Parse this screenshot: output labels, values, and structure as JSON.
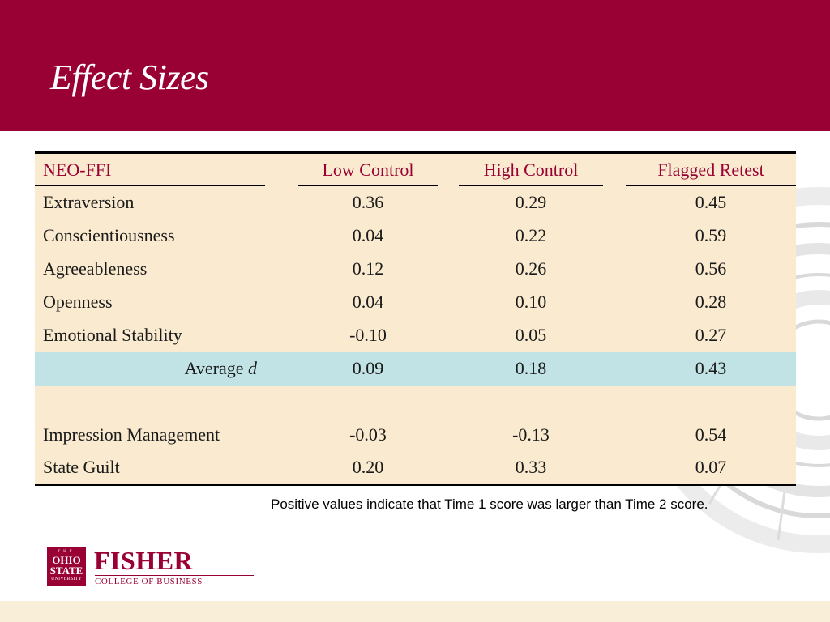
{
  "slide": {
    "title": "Effect Sizes",
    "colors": {
      "header": "#990033",
      "table_bg": "#faebd0",
      "highlight_row": "#c2e3e6",
      "header_text": "#990033"
    }
  },
  "table": {
    "headers": [
      "NEO-FFI",
      "Low Control",
      "High Control",
      "Flagged Retest"
    ],
    "rows": [
      {
        "label": "Extraversion",
        "values": [
          "0.36",
          "0.29",
          "0.45"
        ]
      },
      {
        "label": "Conscientiousness",
        "values": [
          "0.04",
          "0.22",
          "0.59"
        ]
      },
      {
        "label": "Agreeableness",
        "values": [
          "0.12",
          "0.26",
          "0.56"
        ]
      },
      {
        "label": "Openness",
        "values": [
          "0.04",
          "0.10",
          "0.28"
        ]
      },
      {
        "label": "Emotional Stability",
        "values": [
          "-0.10",
          "0.05",
          "0.27"
        ]
      }
    ],
    "average": {
      "label": "Average",
      "symbol": "d",
      "values": [
        "0.09",
        "0.18",
        "0.43"
      ]
    },
    "extra_rows": [
      {
        "label": "Impression Management",
        "values": [
          "-0.03",
          "-0.13",
          "0.54"
        ]
      },
      {
        "label": "State Guilt",
        "values": [
          "0.20",
          "0.33",
          "0.07"
        ]
      }
    ]
  },
  "note": "Positive values indicate that Time 1 score was larger than Time 2 score.",
  "logo": {
    "osu_lines": [
      "THE",
      "OHIO",
      "STATE",
      "UNIVERSITY"
    ],
    "name": "FISHER",
    "subtitle": "COLLEGE OF BUSINESS"
  }
}
